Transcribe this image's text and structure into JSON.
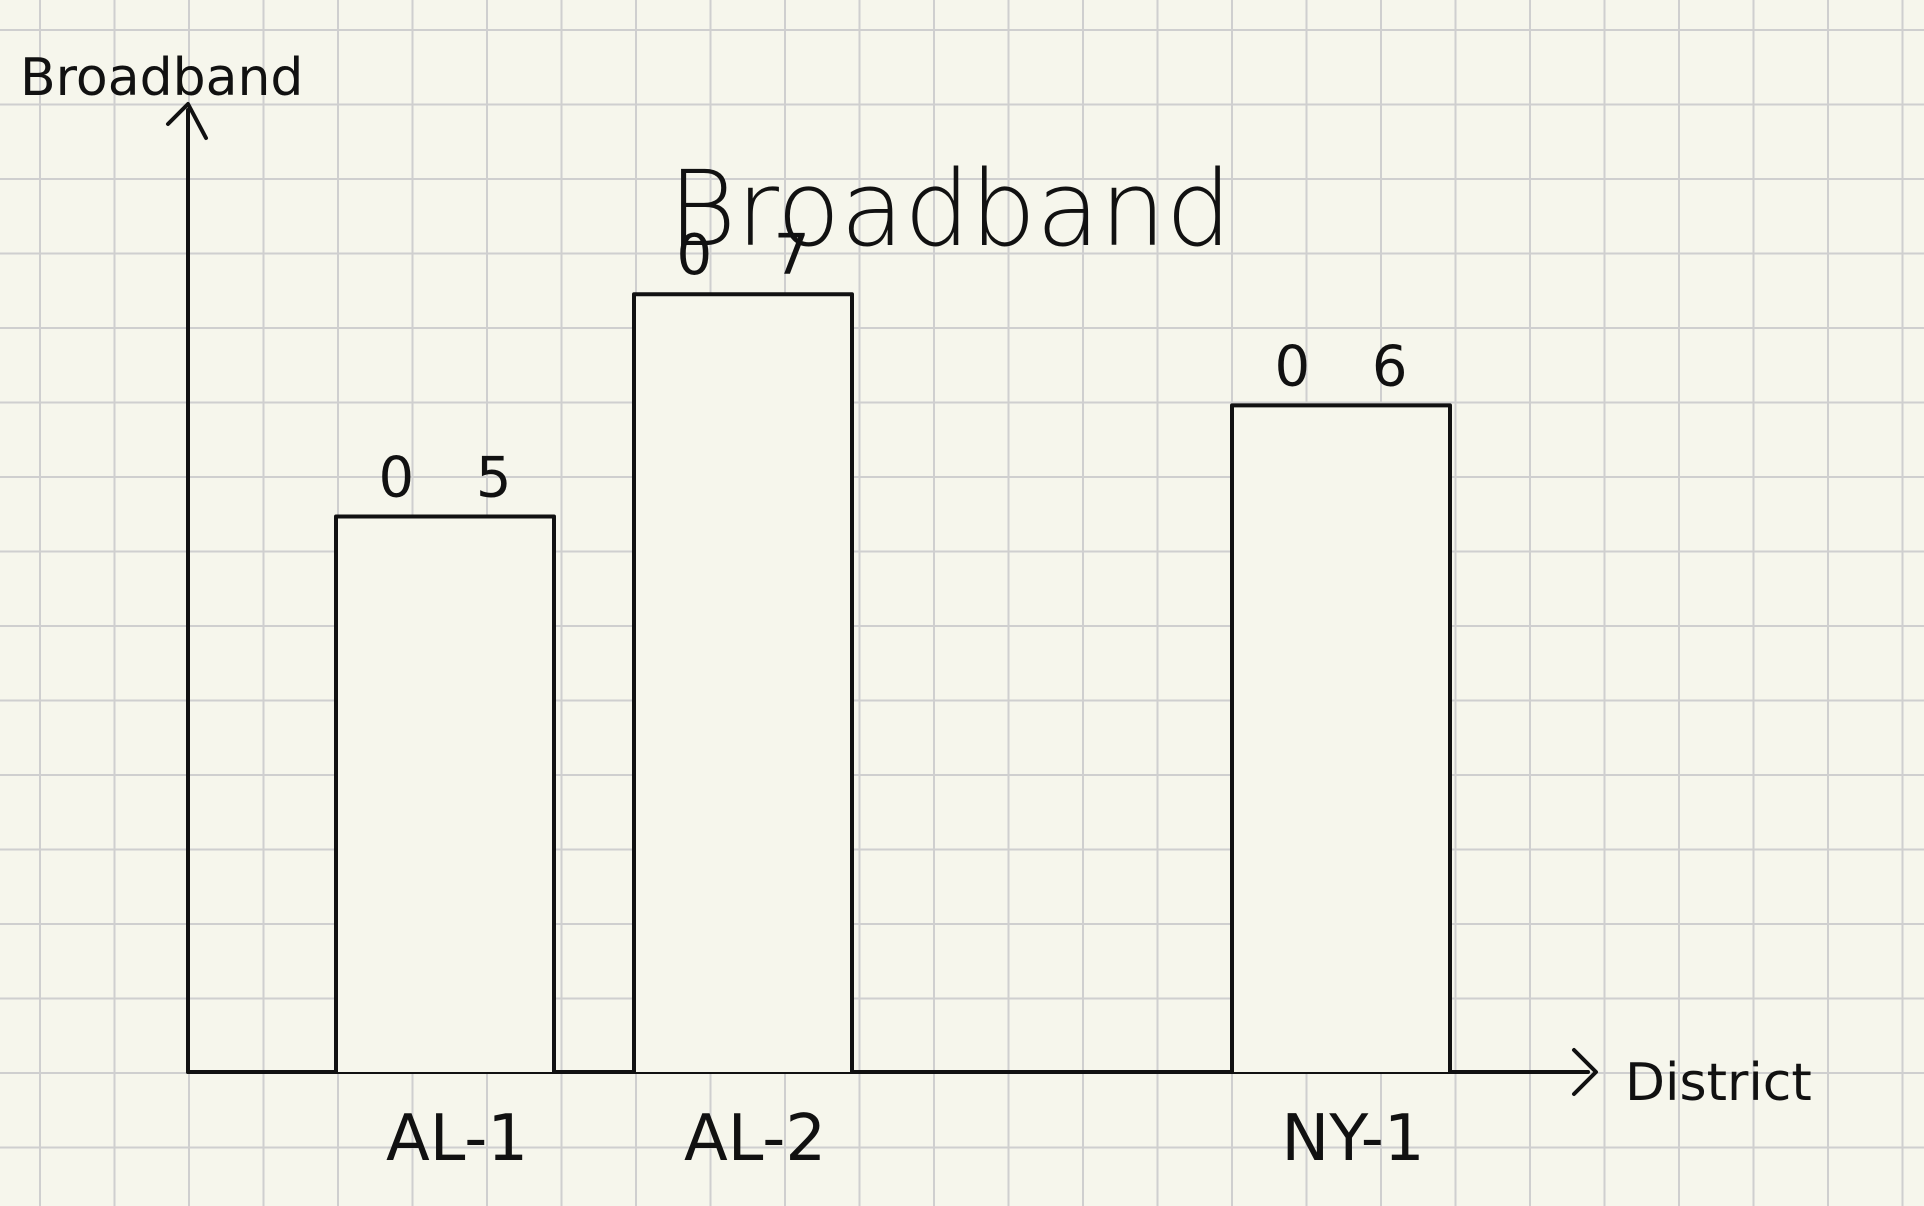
{
  "chart_data": {
    "type": "bar",
    "title": "Broadband",
    "xlabel": "District",
    "ylabel": "Broadband",
    "categories": [
      "AL-1",
      "AL-2",
      "NY-1"
    ],
    "values": [
      0.5,
      0.7,
      0.6
    ],
    "data_labels": [
      "0 5",
      "0 7",
      "0 6"
    ],
    "ylim": [
      0,
      0.9
    ],
    "grid": true,
    "legend": "none",
    "colors": {
      "background": "#f6f6ec",
      "grid": "#cfcfcf",
      "ink": "#111111",
      "bar_fill": "#f6f6ec"
    }
  }
}
